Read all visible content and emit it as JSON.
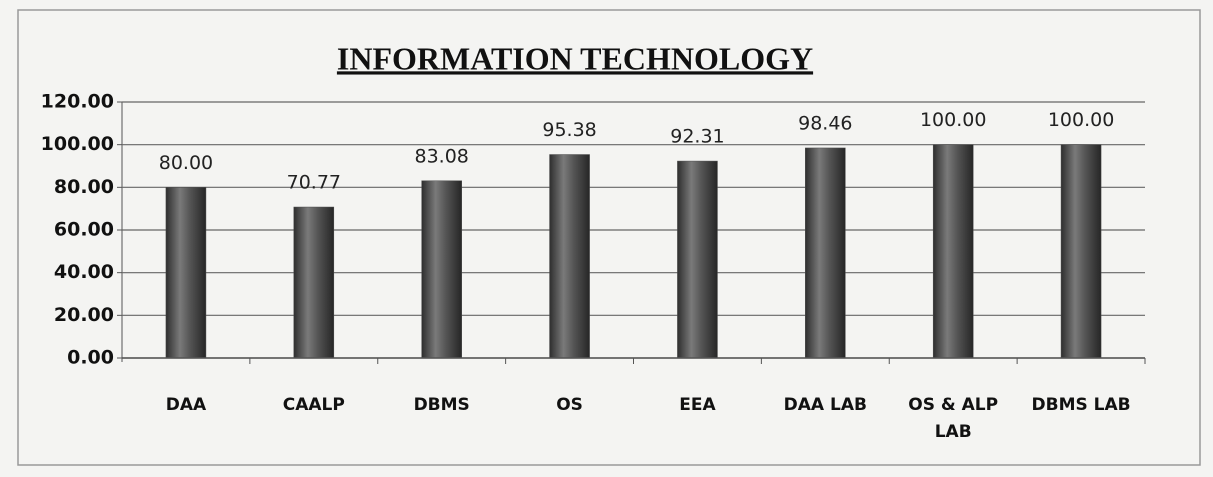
{
  "chart_data": {
    "type": "bar",
    "title": "INFORMATION TECHNOLOGY",
    "categories": [
      "DAA",
      "CAALP",
      "DBMS",
      "OS",
      "EEA",
      "DAA LAB",
      "OS & ALP LAB",
      "DBMS LAB"
    ],
    "values": [
      80,
      70.77,
      83.08,
      95.38,
      92.31,
      98.46,
      100,
      100
    ],
    "value_labels": [
      "80.00",
      "70.77",
      "83.08",
      "95.38",
      "92.31",
      "98.46",
      "100.00",
      "100.00"
    ],
    "color": "#4a4a4a",
    "ylim": [
      0,
      120
    ],
    "yticks": [
      {
        "value": 0,
        "label": "0.00"
      },
      {
        "value": 20,
        "label": "20.00"
      },
      {
        "value": 40,
        "label": "40.00"
      },
      {
        "value": 60,
        "label": "60.00"
      },
      {
        "value": 80,
        "label": "80.00"
      },
      {
        "value": 100,
        "label": "100.00"
      },
      {
        "value": 120,
        "label": "120.00"
      }
    ],
    "grid": true
  }
}
